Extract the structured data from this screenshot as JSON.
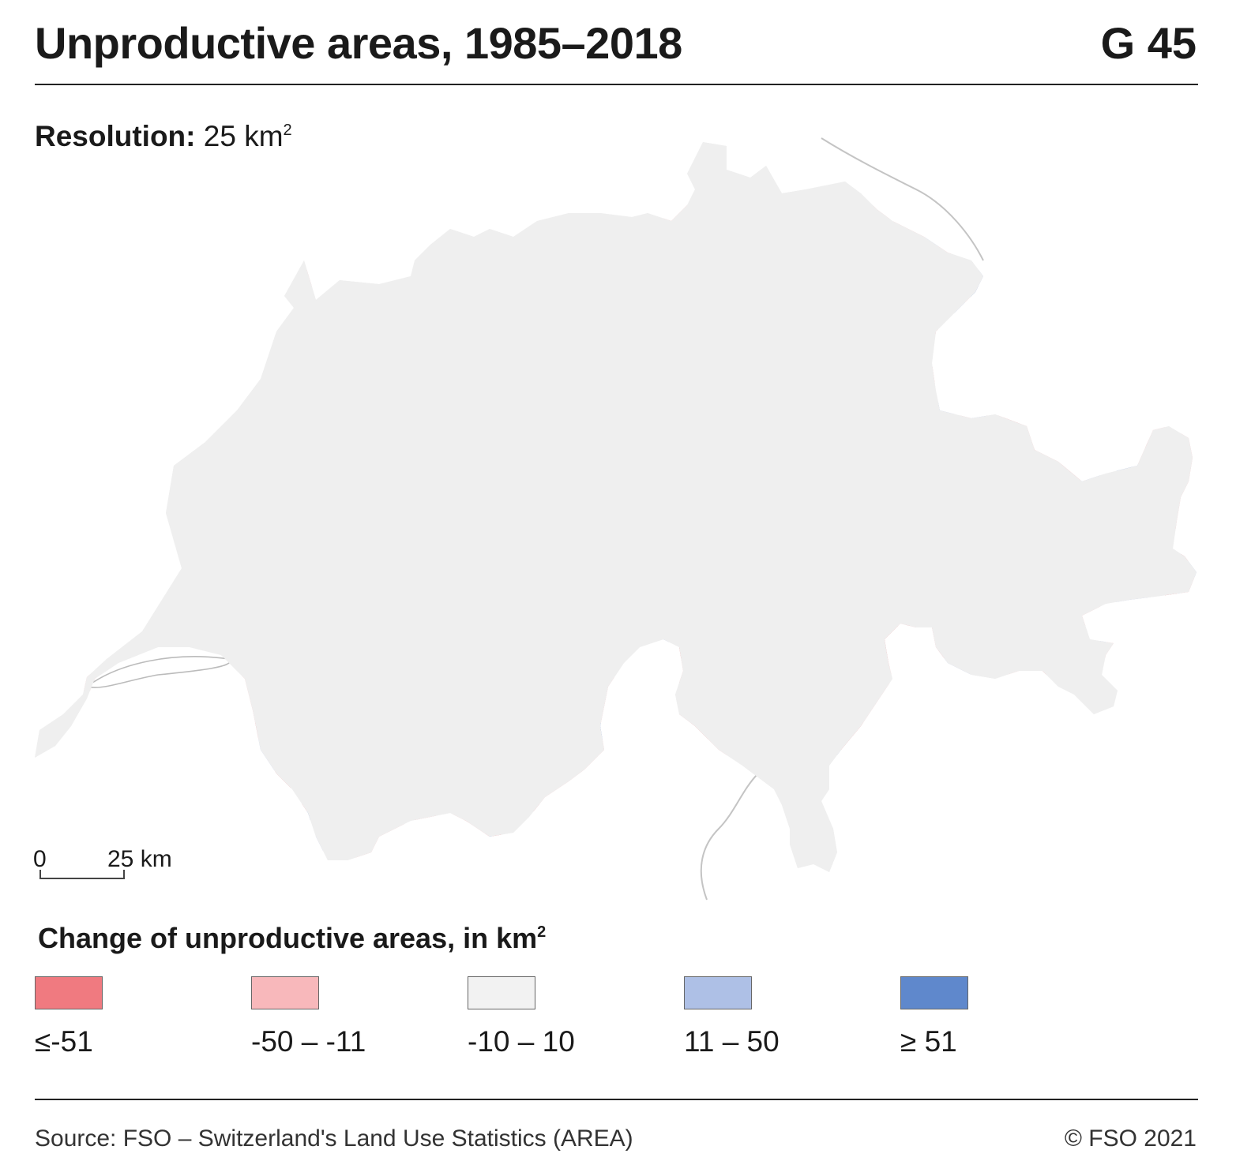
{
  "header": {
    "title": "Unproductive areas, 1985–2018",
    "figure_number": "G 45"
  },
  "resolution": {
    "label": "Resolution:",
    "value": "25 km",
    "unit_power": "2"
  },
  "scale": {
    "zero": "0",
    "end": "25 km"
  },
  "legend": {
    "title": "Change of unproductive areas, in km",
    "title_power": "2",
    "items": [
      {
        "label": "≤-51",
        "color": "#f07a80"
      },
      {
        "label": "-50 – -11",
        "color": "#f8b8bb"
      },
      {
        "label": "-10 – 10",
        "color": "#f2f2f2"
      },
      {
        "label": "11 – 50",
        "color": "#aec0e6"
      },
      {
        "label": "≥ 51",
        "color": "#5f88cc"
      }
    ]
  },
  "footer": {
    "source": "Source: FSO – Switzerland's Land Use Statistics (AREA)",
    "copyright": "© FSO 2021"
  }
}
